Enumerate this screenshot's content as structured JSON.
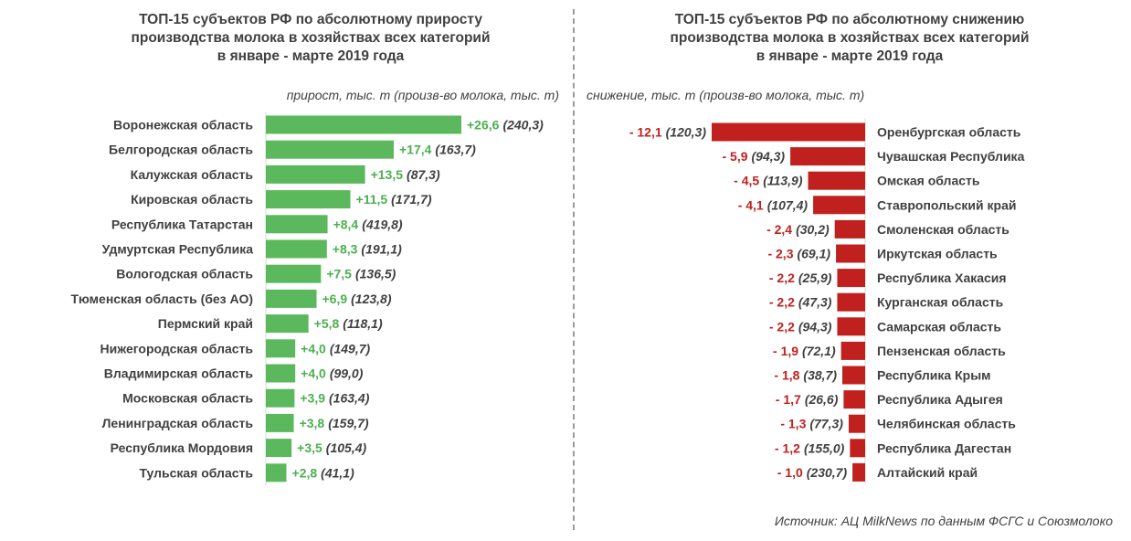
{
  "chart_data": [
    {
      "type": "bar",
      "orientation": "horizontal",
      "title_lines": [
        "ТОП-15 субъектов РФ по абсолютному приросту",
        "производства молока в хозяйствах всех категорий",
        "в январе - марте 2019 года"
      ],
      "unit_label": "прирост, тыс. т (произв-во молока, тыс. т)",
      "color": "#5cb85c",
      "value_color": "#4caf50",
      "categories": [
        "Воронежская область",
        "Белгородская область",
        "Калужская область",
        "Кировская область",
        "Республика Татарстан",
        "Удмуртская Республика",
        "Вологодская область",
        "Тюменская область (без АО)",
        "Пермский край",
        "Нижегородская область",
        "Владимирская область",
        "Московская область",
        "Ленинградская область",
        "Республика Мордовия",
        "Тульская область"
      ],
      "values": [
        26.6,
        17.4,
        13.5,
        11.5,
        8.4,
        8.3,
        7.5,
        6.9,
        5.8,
        4.0,
        4.0,
        3.9,
        3.8,
        3.5,
        2.8
      ],
      "value_labels": [
        "+26,6",
        "+17,4",
        "+13,5",
        "+11,5",
        "+8,4",
        "+8,3",
        "+7,5",
        "+6,9",
        "+5,8",
        "+4,0",
        "+4,0",
        "+3,9",
        "+3,8",
        "+3,5",
        "+2,8"
      ],
      "production": [
        240.3,
        163.7,
        87.3,
        171.7,
        419.8,
        191.1,
        136.5,
        123.8,
        118.1,
        149.7,
        99.0,
        163.4,
        159.7,
        105.4,
        41.1
      ],
      "production_labels": [
        "(240,3)",
        "(163,7)",
        "(87,3)",
        "(171,7)",
        "(419,8)",
        "(191,1)",
        "(136,5)",
        "(123,8)",
        "(118,1)",
        "(149,7)",
        "(99,0)",
        "(163,4)",
        "(159,7)",
        "(105,4)",
        "(41,1)"
      ]
    },
    {
      "type": "bar",
      "orientation": "horizontal",
      "title_lines": [
        "ТОП-15 субъектов РФ по абсолютному снижению",
        "производства молока в хозяйствах всех категорий",
        "в январе - марте 2019 года"
      ],
      "unit_label": "снижение, тыс. т (произв-во молока, тыс. т)",
      "color": "#c0211f",
      "value_color": "#c0211f",
      "categories": [
        "Оренбургская область",
        "Чувашская Республика",
        "Омская область",
        "Ставропольский край",
        "Смоленская область",
        "Иркутская область",
        "Республика Хакасия",
        "Курганская область",
        "Самарская область",
        "Пензенская область",
        "Республика Крым",
        "Республика Адыгея",
        "Челябинская область",
        "Республика Дагестан",
        "Алтайский край"
      ],
      "values": [
        -12.1,
        -5.9,
        -4.5,
        -4.1,
        -2.4,
        -2.3,
        -2.2,
        -2.2,
        -2.2,
        -1.9,
        -1.8,
        -1.7,
        -1.3,
        -1.2,
        -1.0
      ],
      "value_labels": [
        "- 12,1",
        "- 5,9",
        "- 4,5",
        "- 4,1",
        "- 2,4",
        "- 2,3",
        "- 2,2",
        "- 2,2",
        "- 2,2",
        "- 1,9",
        "- 1,8",
        "- 1,7",
        "- 1,3",
        "- 1,2",
        "- 1,0"
      ],
      "production": [
        120.3,
        94.3,
        113.9,
        107.4,
        30.2,
        69.1,
        25.9,
        47.3,
        94.3,
        72.1,
        38.7,
        26.6,
        77.3,
        155.0,
        230.7
      ],
      "production_labels": [
        "(120,3)",
        "(94,3)",
        "(113,9)",
        "(107,4)",
        "(30,2)",
        "(69,1)",
        "(25,9)",
        "(47,3)",
        "(94,3)",
        "(72,1)",
        "(38,7)",
        "(26,6)",
        "(77,3)",
        "(155,0)",
        "(230,7)"
      ]
    }
  ],
  "source": "Источник: АЦ MilkNews по данным ФСГС и Союзмолоко"
}
